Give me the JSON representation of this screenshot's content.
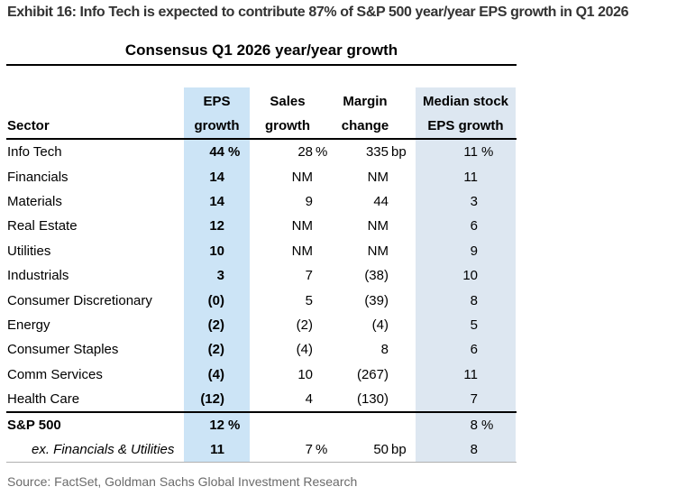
{
  "exhibit_title": "Exhibit 16: Info Tech is expected to contribute 87% of S&P 500 year/year EPS growth in Q1 2026",
  "source_note": "Source: FactSet, Goldman Sachs Global Investment Research",
  "colors": {
    "eps_column_shade": "#cce4f6",
    "median_column_shade": "#dde7f1",
    "heading_text": "#333333",
    "source_text": "#6b6b6b"
  },
  "table": {
    "title": "Consensus Q1 2026 year/year growth",
    "header": {
      "sector": "Sector",
      "eps": [
        "EPS",
        "growth"
      ],
      "sales": [
        "Sales",
        "growth"
      ],
      "margin": [
        "Margin",
        "change"
      ],
      "median": [
        "Median stock",
        "EPS growth"
      ]
    },
    "rows": [
      {
        "sector": "Info Tech",
        "eps": "44",
        "eps_unit": "%",
        "sales": "28",
        "sales_unit": "%",
        "margin": "335",
        "margin_unit": "bp",
        "median": "11",
        "median_unit": "%"
      },
      {
        "sector": "Financials",
        "eps": "14",
        "sales": "NM",
        "margin": "NM",
        "median": "11"
      },
      {
        "sector": "Materials",
        "eps": "14",
        "sales": "9",
        "margin": "44",
        "median": "3"
      },
      {
        "sector": "Real Estate",
        "eps": "12",
        "sales": "NM",
        "margin": "NM",
        "median": "6"
      },
      {
        "sector": "Utilities",
        "eps": "10",
        "sales": "NM",
        "margin": "NM",
        "median": "9"
      },
      {
        "sector": "Industrials",
        "eps": "3",
        "sales": "7",
        "margin": "(38)",
        "median": "10"
      },
      {
        "sector": "Consumer Discretionary",
        "eps": "(0)",
        "sales": "5",
        "margin": "(39)",
        "median": "8"
      },
      {
        "sector": "Energy",
        "eps": "(2)",
        "sales": "(2)",
        "margin": "(4)",
        "median": "5"
      },
      {
        "sector": "Consumer Staples",
        "eps": "(2)",
        "sales": "(4)",
        "margin": "8",
        "median": "6"
      },
      {
        "sector": "Comm Services",
        "eps": "(4)",
        "sales": "10",
        "margin": "(267)",
        "median": "11"
      },
      {
        "sector": "Health Care",
        "eps": "(12)",
        "sales": "4",
        "margin": "(130)",
        "median": "7"
      }
    ],
    "summary_rows": [
      {
        "sector": "S&P 500",
        "eps": "12",
        "eps_unit": "%",
        "median": "8",
        "median_unit": "%"
      },
      {
        "sector": "ex. Financials & Utilities",
        "eps": "11",
        "sales": "7",
        "sales_unit": "%",
        "margin": "50",
        "margin_unit": "bp",
        "median": "8"
      }
    ]
  },
  "chart_data": {
    "type": "table",
    "title": "Consensus Q1 2026 year/year growth",
    "columns": [
      "Sector",
      "EPS growth",
      "Sales growth",
      "Margin change",
      "Median stock EPS growth"
    ],
    "rows": [
      [
        "Info Tech",
        "44 %",
        "28 %",
        "335 bp",
        "11 %"
      ],
      [
        "Financials",
        "14",
        "NM",
        "NM",
        "11"
      ],
      [
        "Materials",
        "14",
        "9",
        "44",
        "3"
      ],
      [
        "Real Estate",
        "12",
        "NM",
        "NM",
        "6"
      ],
      [
        "Utilities",
        "10",
        "NM",
        "NM",
        "9"
      ],
      [
        "Industrials",
        "3",
        "7",
        "(38)",
        "10"
      ],
      [
        "Consumer Discretionary",
        "(0)",
        "5",
        "(39)",
        "8"
      ],
      [
        "Energy",
        "(2)",
        "(2)",
        "(4)",
        "5"
      ],
      [
        "Consumer Staples",
        "(2)",
        "(4)",
        "8",
        "6"
      ],
      [
        "Comm Services",
        "(4)",
        "10",
        "(267)",
        "11"
      ],
      [
        "Health Care",
        "(12)",
        "4",
        "(130)",
        "7"
      ],
      [
        "S&P 500",
        "12 %",
        "",
        "",
        "8 %"
      ],
      [
        "ex. Financials & Utilities",
        "11",
        "7 %",
        "50 bp",
        "8"
      ]
    ]
  }
}
